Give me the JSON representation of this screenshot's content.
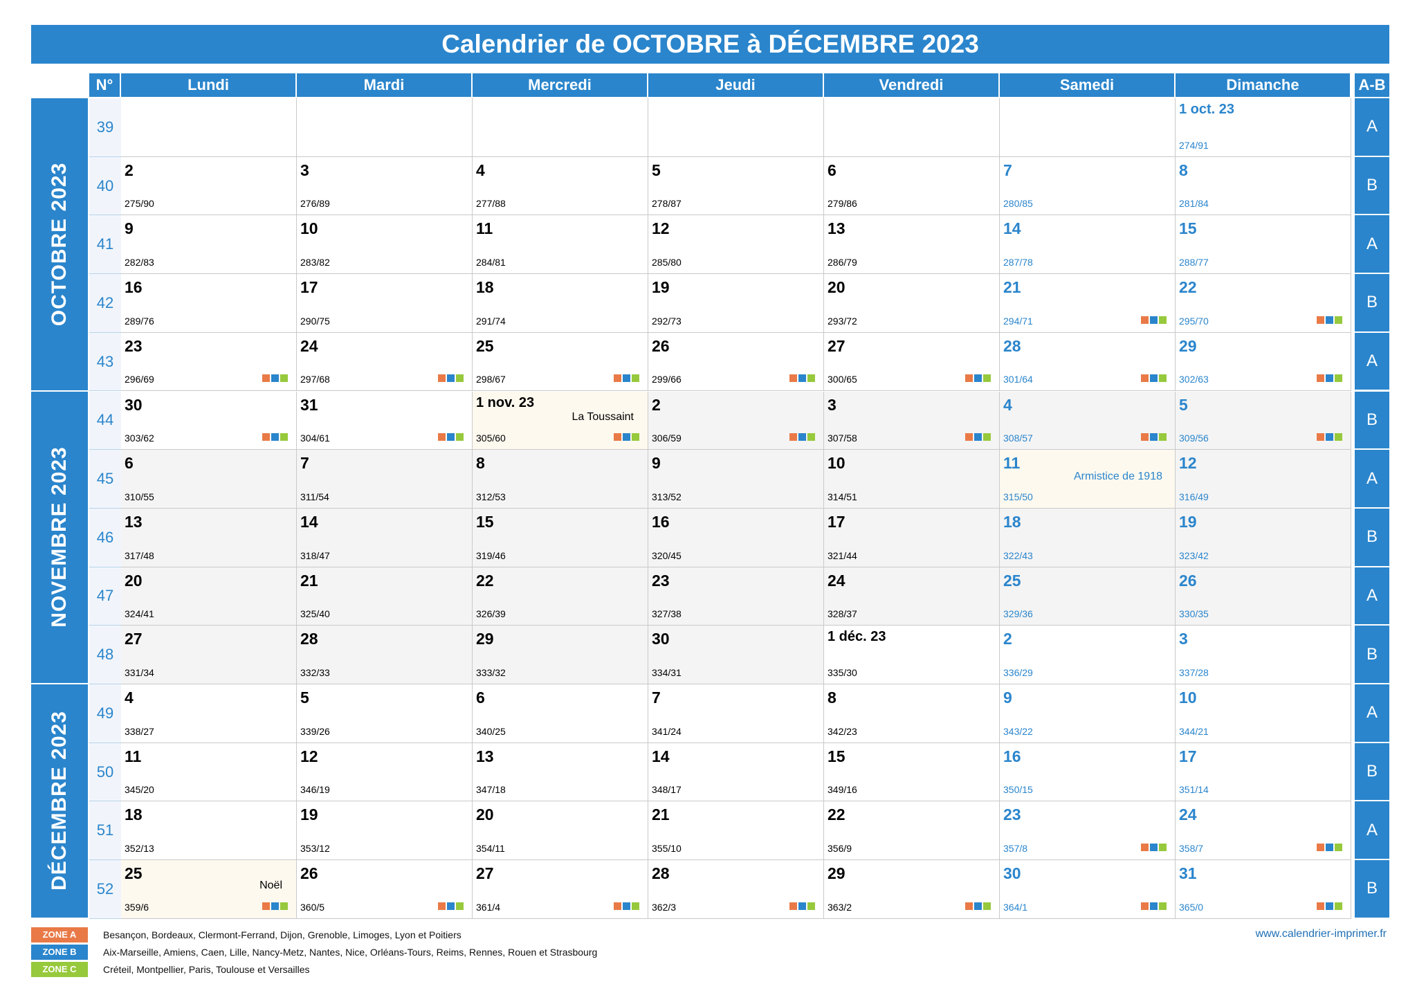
{
  "title": "Calendrier de OCTOBRE à DÉCEMBRE 2023",
  "colors": {
    "brand": "#2a85cc",
    "zoneA": "#e97a47",
    "zoneB": "#2a85cc",
    "zoneC": "#97c93c",
    "weekend": "#2a85cc"
  },
  "header": {
    "week_no": "N°",
    "days": [
      "Lundi",
      "Mardi",
      "Mercredi",
      "Jeudi",
      "Vendredi",
      "Samedi",
      "Dimanche"
    ],
    "ab": "A-B"
  },
  "months": [
    {
      "label": "OCTOBRE 2023",
      "rows": [
        0,
        4
      ]
    },
    {
      "label": "NOVEMBRE 2023",
      "rows": [
        5,
        9
      ]
    },
    {
      "label": "DÉCEMBRE 2023",
      "rows": [
        10,
        13
      ]
    }
  ],
  "weeks": [
    {
      "wk": "39",
      "ab": "A",
      "days": [
        null,
        null,
        null,
        null,
        null,
        null,
        {
          "d": "1 oct. 23",
          "y": "274/91",
          "we": true
        }
      ]
    },
    {
      "wk": "40",
      "ab": "B",
      "days": [
        {
          "d": "2",
          "y": "275/90"
        },
        {
          "d": "3",
          "y": "276/89"
        },
        {
          "d": "4",
          "y": "277/88"
        },
        {
          "d": "5",
          "y": "278/87"
        },
        {
          "d": "6",
          "y": "279/86"
        },
        {
          "d": "7",
          "y": "280/85",
          "we": true
        },
        {
          "d": "8",
          "y": "281/84",
          "we": true
        }
      ]
    },
    {
      "wk": "41",
      "ab": "A",
      "days": [
        {
          "d": "9",
          "y": "282/83"
        },
        {
          "d": "10",
          "y": "283/82"
        },
        {
          "d": "11",
          "y": "284/81"
        },
        {
          "d": "12",
          "y": "285/80"
        },
        {
          "d": "13",
          "y": "286/79"
        },
        {
          "d": "14",
          "y": "287/78",
          "we": true
        },
        {
          "d": "15",
          "y": "288/77",
          "we": true
        }
      ]
    },
    {
      "wk": "42",
      "ab": "B",
      "days": [
        {
          "d": "16",
          "y": "289/76"
        },
        {
          "d": "17",
          "y": "290/75"
        },
        {
          "d": "18",
          "y": "291/74"
        },
        {
          "d": "19",
          "y": "292/73"
        },
        {
          "d": "20",
          "y": "293/72"
        },
        {
          "d": "21",
          "y": "294/71",
          "we": true,
          "z": true
        },
        {
          "d": "22",
          "y": "295/70",
          "we": true,
          "z": true
        }
      ]
    },
    {
      "wk": "43",
      "ab": "A",
      "days": [
        {
          "d": "23",
          "y": "296/69",
          "z": true
        },
        {
          "d": "24",
          "y": "297/68",
          "z": true
        },
        {
          "d": "25",
          "y": "298/67",
          "z": true
        },
        {
          "d": "26",
          "y": "299/66",
          "z": true
        },
        {
          "d": "27",
          "y": "300/65",
          "z": true
        },
        {
          "d": "28",
          "y": "301/64",
          "we": true,
          "z": true
        },
        {
          "d": "29",
          "y": "302/63",
          "we": true,
          "z": true
        }
      ]
    },
    {
      "wk": "44",
      "ab": "B",
      "days": [
        {
          "d": "30",
          "y": "303/62",
          "z": true
        },
        {
          "d": "31",
          "y": "304/61",
          "z": true
        },
        {
          "d": "1 nov. 23",
          "y": "305/60",
          "z": true,
          "nov": true,
          "hol": "La Toussaint"
        },
        {
          "d": "2",
          "y": "306/59",
          "z": true,
          "nov": true
        },
        {
          "d": "3",
          "y": "307/58",
          "z": true,
          "nov": true
        },
        {
          "d": "4",
          "y": "308/57",
          "we": true,
          "z": true,
          "nov": true
        },
        {
          "d": "5",
          "y": "309/56",
          "we": true,
          "z": true,
          "nov": true
        }
      ]
    },
    {
      "wk": "45",
      "ab": "A",
      "days": [
        {
          "d": "6",
          "y": "310/55",
          "nov": true
        },
        {
          "d": "7",
          "y": "311/54",
          "nov": true
        },
        {
          "d": "8",
          "y": "312/53",
          "nov": true
        },
        {
          "d": "9",
          "y": "313/52",
          "nov": true
        },
        {
          "d": "10",
          "y": "314/51",
          "nov": true
        },
        {
          "d": "11",
          "y": "315/50",
          "we": true,
          "nov": true,
          "hol": "Armistice de 1918"
        },
        {
          "d": "12",
          "y": "316/49",
          "we": true,
          "nov": true
        }
      ]
    },
    {
      "wk": "46",
      "ab": "B",
      "days": [
        {
          "d": "13",
          "y": "317/48",
          "nov": true
        },
        {
          "d": "14",
          "y": "318/47",
          "nov": true
        },
        {
          "d": "15",
          "y": "319/46",
          "nov": true
        },
        {
          "d": "16",
          "y": "320/45",
          "nov": true
        },
        {
          "d": "17",
          "y": "321/44",
          "nov": true
        },
        {
          "d": "18",
          "y": "322/43",
          "we": true,
          "nov": true
        },
        {
          "d": "19",
          "y": "323/42",
          "we": true,
          "nov": true
        }
      ]
    },
    {
      "wk": "47",
      "ab": "A",
      "days": [
        {
          "d": "20",
          "y": "324/41",
          "nov": true
        },
        {
          "d": "21",
          "y": "325/40",
          "nov": true
        },
        {
          "d": "22",
          "y": "326/39",
          "nov": true
        },
        {
          "d": "23",
          "y": "327/38",
          "nov": true
        },
        {
          "d": "24",
          "y": "328/37",
          "nov": true
        },
        {
          "d": "25",
          "y": "329/36",
          "we": true,
          "nov": true
        },
        {
          "d": "26",
          "y": "330/35",
          "we": true,
          "nov": true
        }
      ]
    },
    {
      "wk": "48",
      "ab": "B",
      "days": [
        {
          "d": "27",
          "y": "331/34",
          "nov": true
        },
        {
          "d": "28",
          "y": "332/33",
          "nov": true
        },
        {
          "d": "29",
          "y": "333/32",
          "nov": true
        },
        {
          "d": "30",
          "y": "334/31",
          "nov": true
        },
        {
          "d": "1 déc. 23",
          "y": "335/30"
        },
        {
          "d": "2",
          "y": "336/29",
          "we": true
        },
        {
          "d": "3",
          "y": "337/28",
          "we": true
        }
      ]
    },
    {
      "wk": "49",
      "ab": "A",
      "days": [
        {
          "d": "4",
          "y": "338/27"
        },
        {
          "d": "5",
          "y": "339/26"
        },
        {
          "d": "6",
          "y": "340/25"
        },
        {
          "d": "7",
          "y": "341/24"
        },
        {
          "d": "8",
          "y": "342/23"
        },
        {
          "d": "9",
          "y": "343/22",
          "we": true
        },
        {
          "d": "10",
          "y": "344/21",
          "we": true
        }
      ]
    },
    {
      "wk": "50",
      "ab": "B",
      "days": [
        {
          "d": "11",
          "y": "345/20"
        },
        {
          "d": "12",
          "y": "346/19"
        },
        {
          "d": "13",
          "y": "347/18"
        },
        {
          "d": "14",
          "y": "348/17"
        },
        {
          "d": "15",
          "y": "349/16"
        },
        {
          "d": "16",
          "y": "350/15",
          "we": true
        },
        {
          "d": "17",
          "y": "351/14",
          "we": true
        }
      ]
    },
    {
      "wk": "51",
      "ab": "A",
      "days": [
        {
          "d": "18",
          "y": "352/13"
        },
        {
          "d": "19",
          "y": "353/12"
        },
        {
          "d": "20",
          "y": "354/11"
        },
        {
          "d": "21",
          "y": "355/10"
        },
        {
          "d": "22",
          "y": "356/9"
        },
        {
          "d": "23",
          "y": "357/8",
          "we": true,
          "z": true
        },
        {
          "d": "24",
          "y": "358/7",
          "we": true,
          "z": true
        }
      ]
    },
    {
      "wk": "52",
      "ab": "B",
      "days": [
        {
          "d": "25",
          "y": "359/6",
          "z": true,
          "hol": "Noël"
        },
        {
          "d": "26",
          "y": "360/5",
          "z": true
        },
        {
          "d": "27",
          "y": "361/4",
          "z": true
        },
        {
          "d": "28",
          "y": "362/3",
          "z": true
        },
        {
          "d": "29",
          "y": "363/2",
          "z": true
        },
        {
          "d": "30",
          "y": "364/1",
          "we": true,
          "z": true
        },
        {
          "d": "31",
          "y": "365/0",
          "we": true,
          "z": true
        }
      ]
    }
  ],
  "legend": [
    {
      "tag": "ZONE A",
      "color": "#e97a47",
      "text": "Besançon, Bordeaux, Clermont-Ferrand, Dijon, Grenoble, Limoges, Lyon et Poitiers"
    },
    {
      "tag": "ZONE B",
      "color": "#2a85cc",
      "text": "Aix-Marseille, Amiens, Caen, Lille, Nancy-Metz, Nantes, Nice, Orléans-Tours, Reims, Rennes, Rouen et Strasbourg"
    },
    {
      "tag": "ZONE C",
      "color": "#97c93c",
      "text": "Créteil, Montpellier, Paris, Toulouse et Versailles"
    }
  ],
  "website": "www.calendrier-imprimer.fr"
}
